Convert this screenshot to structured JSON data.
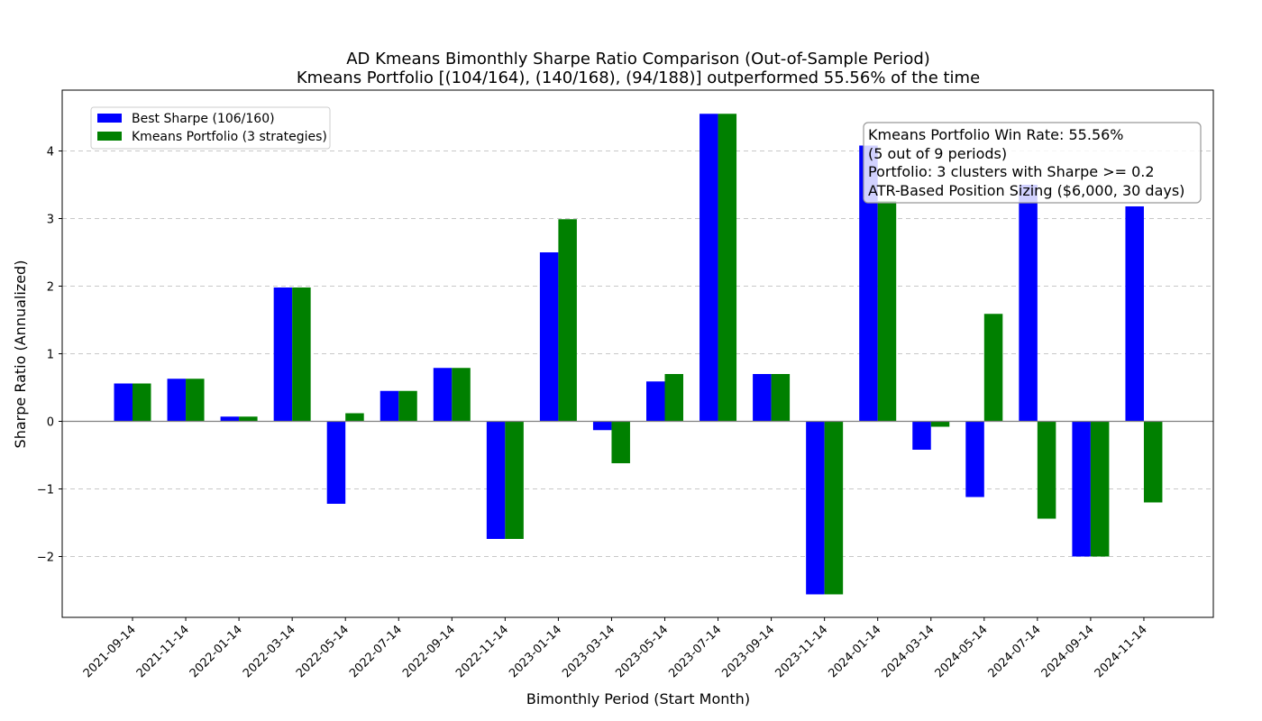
{
  "chart_data": {
    "type": "bar",
    "title": "AD Kmeans Bimonthly Sharpe Ratio Comparison (Out-of-Sample Period)",
    "subtitle": "Kmeans Portfolio [(104/164), (140/168), (94/188)] outperformed 55.56% of the time",
    "xlabel": "Bimonthly Period (Start Month)",
    "ylabel": "Sharpe Ratio (Annualized)",
    "ylim": [
      -2.9,
      4.9
    ],
    "yticks": [
      -2,
      -1,
      0,
      1,
      2,
      3,
      4
    ],
    "ytick_labels": [
      "−2",
      "−1",
      "0",
      "1",
      "2",
      "3",
      "4"
    ],
    "grid": "y-dashed",
    "legend_position": "upper-left",
    "categories": [
      "2021-09-14",
      "2021-11-14",
      "2022-01-14",
      "2022-03-14",
      "2022-05-14",
      "2022-07-14",
      "2022-09-14",
      "2022-11-14",
      "2023-01-14",
      "2023-03-14",
      "2023-05-14",
      "2023-07-14",
      "2023-09-14",
      "2023-11-14",
      "2024-01-14",
      "2024-03-14",
      "2024-05-14",
      "2024-07-14",
      "2024-09-14",
      "2024-11-14"
    ],
    "series": [
      {
        "name": "Best Sharpe (106/160)",
        "color": "#0000ff",
        "values": [
          0.56,
          0.63,
          0.07,
          1.98,
          -1.22,
          0.45,
          0.79,
          -1.74,
          2.5,
          -0.13,
          0.59,
          4.55,
          0.7,
          -2.56,
          4.08,
          -0.42,
          -1.12,
          3.5,
          -2.0,
          3.18
        ]
      },
      {
        "name": "Kmeans Portfolio (3 strategies)",
        "color": "#008000",
        "values": [
          0.56,
          0.63,
          0.07,
          1.98,
          0.12,
          0.45,
          0.79,
          -1.74,
          2.99,
          -0.62,
          0.7,
          4.55,
          0.7,
          -2.56,
          3.26,
          -0.08,
          1.59,
          -1.44,
          -2.0,
          -1.2
        ]
      }
    ],
    "annotation_lines": [
      "Kmeans Portfolio Win Rate: 55.56%",
      "(5 out of 9 periods)",
      "Portfolio: 3 clusters with Sharpe >= 0.2",
      "ATR-Based Position Sizing ($6,000, 30 days)"
    ]
  }
}
